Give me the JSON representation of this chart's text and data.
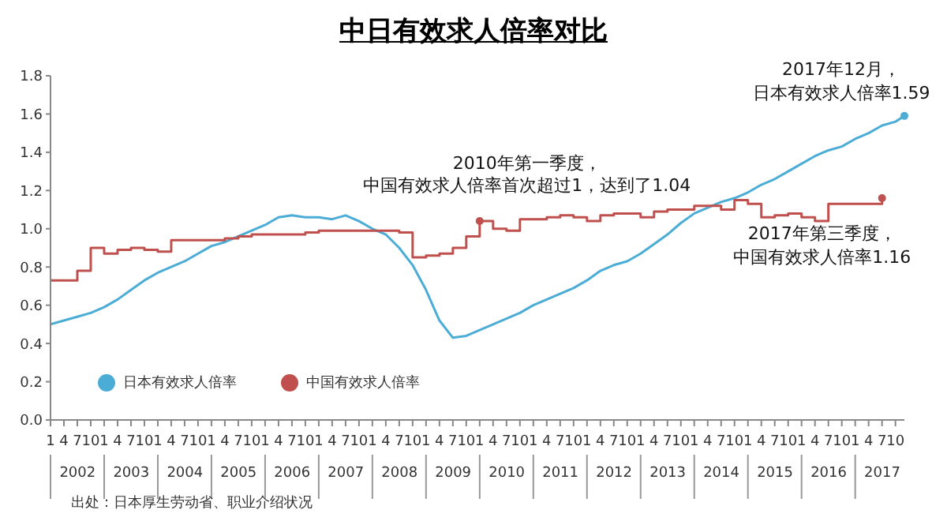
{
  "chart_data": {
    "type": "line",
    "title": "中日有效求人倍率对比",
    "xlim": [
      "2002-01",
      "2017-12"
    ],
    "ylim": [
      0,
      1.8
    ],
    "yticks": [
      {
        "value": 0,
        "label": "0.0"
      },
      {
        "value": 0.2,
        "label": "0.2"
      },
      {
        "value": 0.4,
        "label": "0.4"
      },
      {
        "value": 0.6,
        "label": "0.6"
      },
      {
        "value": 0.8,
        "label": "0.8"
      },
      {
        "value": 1,
        "label": "1.0"
      },
      {
        "value": 1.2,
        "label": "1.2"
      },
      {
        "value": 1.4,
        "label": "1.4"
      },
      {
        "value": 1.6,
        "label": "1.6"
      },
      {
        "value": 1.8,
        "label": "1.8"
      }
    ],
    "xticks": [
      {
        "value": "2002-01",
        "label": "1"
      },
      {
        "value": "2002-04",
        "label": "4"
      },
      {
        "value": "2002-07",
        "label": "7"
      },
      {
        "value": "2002-10",
        "label": "10"
      },
      {
        "value": "2003-01",
        "label": "1"
      },
      {
        "value": "2003-04",
        "label": "4"
      },
      {
        "value": "2003-07",
        "label": "7"
      },
      {
        "value": "2003-10",
        "label": "10"
      },
      {
        "value": "2004-01",
        "label": "1"
      },
      {
        "value": "2004-04",
        "label": "4"
      },
      {
        "value": "2004-07",
        "label": "7"
      },
      {
        "value": "2004-10",
        "label": "10"
      },
      {
        "value": "2005-01",
        "label": "1"
      },
      {
        "value": "2005-04",
        "label": "4"
      },
      {
        "value": "2005-07",
        "label": "7"
      },
      {
        "value": "2005-10",
        "label": "10"
      },
      {
        "value": "2006-01",
        "label": "1"
      },
      {
        "value": "2006-04",
        "label": "4"
      },
      {
        "value": "2006-07",
        "label": "7"
      },
      {
        "value": "2006-10",
        "label": "10"
      },
      {
        "value": "2007-01",
        "label": "1"
      },
      {
        "value": "2007-04",
        "label": "4"
      },
      {
        "value": "2007-07",
        "label": "7"
      },
      {
        "value": "2007-10",
        "label": "10"
      },
      {
        "value": "2008-01",
        "label": "1"
      },
      {
        "value": "2008-04",
        "label": "4"
      },
      {
        "value": "2008-07",
        "label": "7"
      },
      {
        "value": "2008-10",
        "label": "10"
      },
      {
        "value": "2009-01",
        "label": "1"
      },
      {
        "value": "2009-04",
        "label": "4"
      },
      {
        "value": "2009-07",
        "label": "7"
      },
      {
        "value": "2009-10",
        "label": "10"
      },
      {
        "value": "2010-01",
        "label": "1"
      },
      {
        "value": "2010-04",
        "label": "4"
      },
      {
        "value": "2010-07",
        "label": "7"
      },
      {
        "value": "2010-10",
        "label": "10"
      },
      {
        "value": "2011-01",
        "label": "1"
      },
      {
        "value": "2011-04",
        "label": "4"
      },
      {
        "value": "2011-07",
        "label": "7"
      },
      {
        "value": "2011-10",
        "label": "10"
      },
      {
        "value": "2012-01",
        "label": "1"
      },
      {
        "value": "2012-04",
        "label": "4"
      },
      {
        "value": "2012-07",
        "label": "7"
      },
      {
        "value": "2012-10",
        "label": "10"
      },
      {
        "value": "2013-01",
        "label": "1"
      },
      {
        "value": "2013-04",
        "label": "4"
      },
      {
        "value": "2013-07",
        "label": "7"
      },
      {
        "value": "2013-10",
        "label": "10"
      },
      {
        "value": "2014-01",
        "label": "1"
      },
      {
        "value": "2014-04",
        "label": "4"
      },
      {
        "value": "2014-07",
        "label": "7"
      },
      {
        "value": "2014-10",
        "label": "10"
      },
      {
        "value": "2015-01",
        "label": "1"
      },
      {
        "value": "2015-04",
        "label": "4"
      },
      {
        "value": "2015-07",
        "label": "7"
      },
      {
        "value": "2015-10",
        "label": "10"
      },
      {
        "value": "2016-01",
        "label": "1"
      },
      {
        "value": "2016-04",
        "label": "4"
      },
      {
        "value": "2016-07",
        "label": "7"
      },
      {
        "value": "2016-10",
        "label": "10"
      },
      {
        "value": "2017-01",
        "label": "1"
      },
      {
        "value": "2017-04",
        "label": "4"
      },
      {
        "value": "2017-07",
        "label": "7"
      },
      {
        "value": "2017-10",
        "label": "10"
      }
    ],
    "x2lim": [
      "2002-01",
      "2017-12"
    ],
    "x2ticks": [
      {
        "value": "2002-06",
        "label": "2002"
      },
      {
        "value": "2003-06",
        "label": "2003"
      },
      {
        "value": "2004-06",
        "label": "2004"
      },
      {
        "value": "2005-06",
        "label": "2005"
      },
      {
        "value": "2006-06",
        "label": "2006"
      },
      {
        "value": "2007-06",
        "label": "2007"
      },
      {
        "value": "2008-06",
        "label": "2008"
      },
      {
        "value": "2009-06",
        "label": "2009"
      },
      {
        "value": "2010-06",
        "label": "2010"
      },
      {
        "value": "2011-06",
        "label": "2011"
      },
      {
        "value": "2012-06",
        "label": "2012"
      },
      {
        "value": "2013-06",
        "label": "2013"
      },
      {
        "value": "2014-06",
        "label": "2014"
      },
      {
        "value": "2015-06",
        "label": "2015"
      },
      {
        "value": "2016-06",
        "label": "2016"
      },
      {
        "value": "2017-06",
        "label": "2017"
      }
    ],
    "legend": "bottom left",
    "series": [
      {
        "name": "日本有效求人倍率",
        "color": "#4bacd6",
        "x": [
          "2002-01",
          "2002-04",
          "2002-07",
          "2002-10",
          "2003-01",
          "2003-04",
          "2003-07",
          "2003-10",
          "2004-01",
          "2004-04",
          "2004-07",
          "2004-10",
          "2005-01",
          "2005-04",
          "2005-07",
          "2005-10",
          "2006-01",
          "2006-04",
          "2006-07",
          "2006-10",
          "2007-01",
          "2007-04",
          "2007-07",
          "2007-10",
          "2008-01",
          "2008-04",
          "2008-07",
          "2008-10",
          "2009-01",
          "2009-04",
          "2009-07",
          "2009-10",
          "2010-01",
          "2010-04",
          "2010-07",
          "2010-10",
          "2011-01",
          "2011-04",
          "2011-07",
          "2011-10",
          "2012-01",
          "2012-04",
          "2012-07",
          "2012-10",
          "2013-01",
          "2013-04",
          "2013-07",
          "2013-10",
          "2014-01",
          "2014-04",
          "2014-07",
          "2014-10",
          "2015-01",
          "2015-04",
          "2015-07",
          "2015-10",
          "2016-01",
          "2016-04",
          "2016-07",
          "2016-10",
          "2017-01",
          "2017-04",
          "2017-07",
          "2017-10",
          "2017-12"
        ],
        "values": [
          0.5,
          0.52,
          0.54,
          0.56,
          0.59,
          0.63,
          0.68,
          0.73,
          0.77,
          0.8,
          0.83,
          0.87,
          0.91,
          0.93,
          0.96,
          0.99,
          1.02,
          1.06,
          1.07,
          1.06,
          1.06,
          1.05,
          1.07,
          1.04,
          1.0,
          0.97,
          0.9,
          0.81,
          0.68,
          0.52,
          0.43,
          0.44,
          0.47,
          0.5,
          0.53,
          0.56,
          0.6,
          0.63,
          0.66,
          0.69,
          0.73,
          0.78,
          0.81,
          0.83,
          0.87,
          0.92,
          0.97,
          1.03,
          1.08,
          1.11,
          1.14,
          1.16,
          1.19,
          1.23,
          1.26,
          1.3,
          1.34,
          1.38,
          1.41,
          1.43,
          1.47,
          1.5,
          1.54,
          1.56,
          1.59
        ]
      },
      {
        "name": "中国有效求人倍率",
        "color": "#c0504d",
        "type": "step",
        "x": [
          "2002-01",
          "2002-04",
          "2002-07",
          "2002-10",
          "2003-01",
          "2003-04",
          "2003-07",
          "2003-10",
          "2004-01",
          "2004-04",
          "2004-07",
          "2004-10",
          "2005-01",
          "2005-04",
          "2005-07",
          "2005-10",
          "2006-01",
          "2006-04",
          "2006-07",
          "2006-10",
          "2007-01",
          "2007-04",
          "2007-07",
          "2007-10",
          "2008-01",
          "2008-04",
          "2008-07",
          "2008-10",
          "2009-01",
          "2009-04",
          "2009-07",
          "2009-10",
          "2010-01",
          "2010-04",
          "2010-07",
          "2010-10",
          "2011-01",
          "2011-04",
          "2011-07",
          "2011-10",
          "2012-01",
          "2012-04",
          "2012-07",
          "2012-10",
          "2013-01",
          "2013-04",
          "2013-07",
          "2013-10",
          "2014-01",
          "2014-04",
          "2014-07",
          "2014-10",
          "2015-01",
          "2015-04",
          "2015-07",
          "2015-10",
          "2016-01",
          "2016-04",
          "2016-07",
          "2016-10",
          "2017-01",
          "2017-04",
          "2017-07"
        ],
        "values": [
          0.73,
          0.73,
          0.78,
          0.9,
          0.87,
          0.89,
          0.9,
          0.89,
          0.88,
          0.94,
          0.94,
          0.94,
          0.94,
          0.95,
          0.96,
          0.97,
          0.97,
          0.97,
          0.97,
          0.98,
          0.99,
          0.99,
          0.99,
          0.99,
          0.99,
          0.99,
          0.98,
          0.85,
          0.86,
          0.87,
          0.9,
          0.96,
          1.04,
          1.0,
          0.99,
          1.05,
          1.05,
          1.06,
          1.07,
          1.06,
          1.04,
          1.07,
          1.08,
          1.08,
          1.06,
          1.09,
          1.1,
          1.1,
          1.12,
          1.12,
          1.1,
          1.15,
          1.13,
          1.06,
          1.07,
          1.08,
          1.06,
          1.04,
          1.13,
          1.13,
          1.13,
          1.13,
          1.16
        ]
      }
    ],
    "annotations": [
      {
        "text": "2017年12月，日本有效求人倍率1.59",
        "x": "2017-12",
        "y": 1.59
      },
      {
        "text": "2010年第一季度，中国有效求人倍率首次超过1，达到了1.04",
        "x": "2010-01",
        "y": 1.04
      },
      {
        "text": "2017年第三季度，中国有效求人倍率1.16",
        "x": "2017-07",
        "y": 1.16
      },
      "出处：日本厚生劳动省、职业介绍状况"
    ]
  }
}
